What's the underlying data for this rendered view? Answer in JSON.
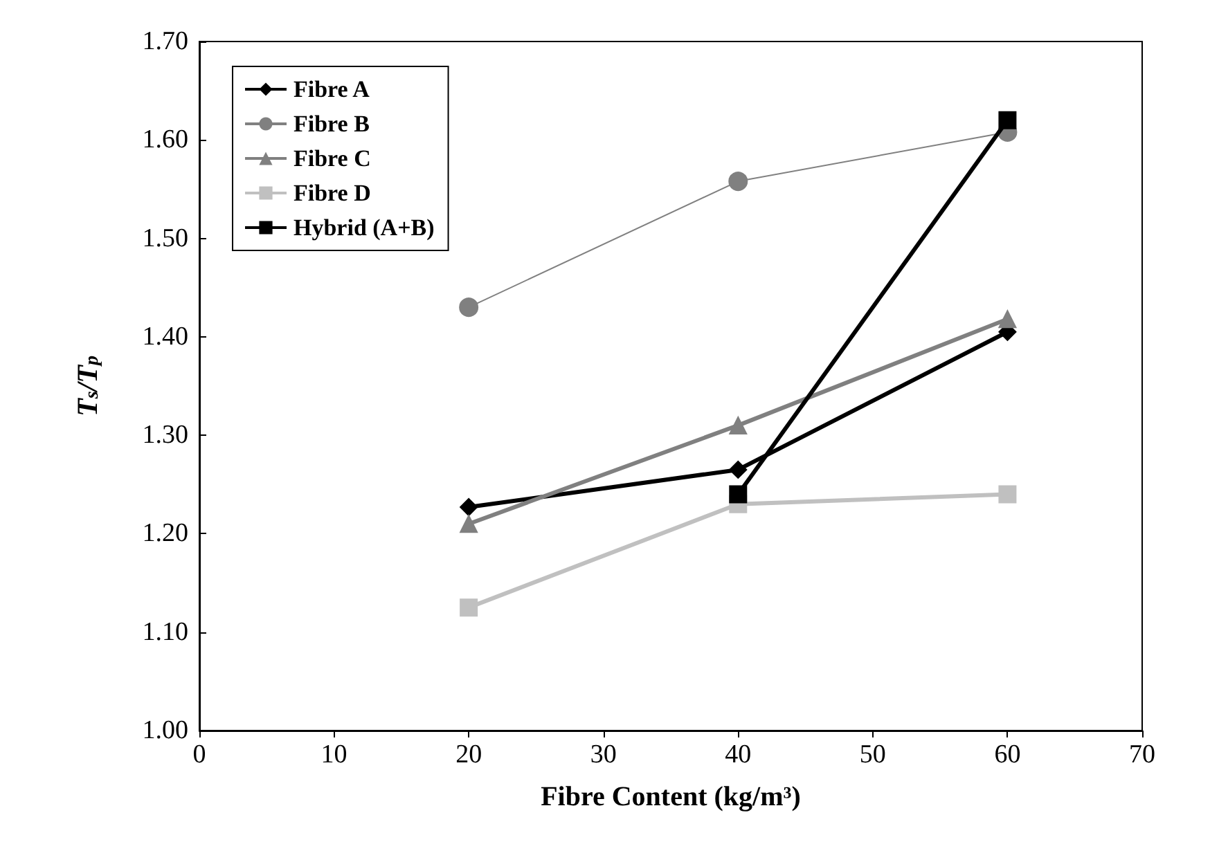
{
  "chart_data": {
    "type": "line",
    "xlabel": "Fibre Content (kg/m³)",
    "ylabel": "T$_{s}$/T$_{p}$",
    "x": [
      20,
      40,
      60
    ],
    "series": [
      {
        "name": "Fibre A",
        "color": "#000000",
        "marker": "diamond",
        "values": [
          1.227,
          1.265,
          1.405
        ]
      },
      {
        "name": "Fibre B",
        "color": "#808080",
        "marker": "circle",
        "values": [
          1.43,
          1.558,
          1.608
        ]
      },
      {
        "name": "Fibre C",
        "color": "#808080",
        "marker": "triangle",
        "values": [
          1.21,
          1.31,
          1.418
        ]
      },
      {
        "name": "Fibre D",
        "color": "#c0c0c0",
        "marker": "square",
        "values": [
          1.125,
          1.23,
          1.24
        ]
      },
      {
        "name": "Hybrid (A+B)",
        "color": "#000000",
        "marker": "square",
        "x": [
          40,
          60
        ],
        "values": [
          1.24,
          1.62
        ]
      }
    ],
    "xlim": [
      0,
      70
    ],
    "xticks": [
      0,
      10,
      20,
      30,
      40,
      50,
      60,
      70
    ],
    "ylim": [
      1,
      1.7
    ],
    "yticks": [
      {
        "value": 1,
        "label": "1.00"
      },
      {
        "value": 1.1,
        "label": "1.10"
      },
      {
        "value": 1.2,
        "label": "1.20"
      },
      {
        "value": 1.3,
        "label": "1.30"
      },
      {
        "value": 1.4,
        "label": "1.40"
      },
      {
        "value": 1.5,
        "label": "1.50"
      },
      {
        "value": 1.6,
        "label": "1.60"
      },
      {
        "value": 1.7,
        "label": "1.70"
      }
    ],
    "grid": false,
    "legend": "top left",
    "line_style": "solid"
  }
}
